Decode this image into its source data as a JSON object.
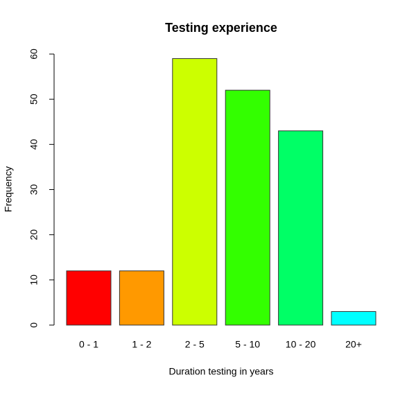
{
  "chart_data": {
    "type": "bar",
    "title": "Testing experience",
    "x_label": "Duration testing in years",
    "y_label": "Frequency",
    "categories": [
      "0 - 1",
      "1 - 2",
      "2 - 5",
      "5 - 10",
      "10 - 20",
      "20+"
    ],
    "values": [
      12,
      12,
      59,
      52,
      43,
      3
    ],
    "colors": [
      "#FF0000",
      "#FF9900",
      "#CCFF00",
      "#33FF00",
      "#00FF66",
      "#00FFFF"
    ],
    "ylim": [
      0,
      60
    ],
    "yticks": [
      0,
      10,
      20,
      30,
      40,
      50,
      60
    ],
    "grid": false
  }
}
